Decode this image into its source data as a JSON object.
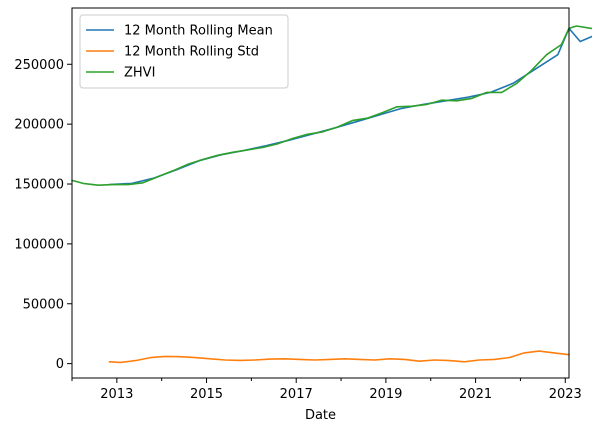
{
  "chart_data": {
    "type": "line",
    "title": "",
    "xlabel": "Date",
    "ylabel": "",
    "xlim": [
      "2012-01-01",
      "2023-02-01"
    ],
    "ylim": [
      -12000,
      297000
    ],
    "x_ticks": [
      "2013",
      "2015",
      "2017",
      "2019",
      "2021",
      "2023"
    ],
    "y_ticks": [
      0,
      50000,
      100000,
      150000,
      200000,
      250000
    ],
    "grid": false,
    "legend_position": "top-left",
    "series": [
      {
        "name": "12 Month Rolling Mean",
        "color": "#1f77b4",
        "points": [
          [
            "2012-11-01",
            149500
          ],
          [
            "2013-05-01",
            150500
          ],
          [
            "2013-11-01",
            155000
          ],
          [
            "2014-05-01",
            162000
          ],
          [
            "2014-11-01",
            169500
          ],
          [
            "2015-05-01",
            174500
          ],
          [
            "2015-11-01",
            178000
          ],
          [
            "2016-05-01",
            182000
          ],
          [
            "2016-11-01",
            186500
          ],
          [
            "2017-05-01",
            191500
          ],
          [
            "2017-11-01",
            196500
          ],
          [
            "2018-05-01",
            202000
          ],
          [
            "2018-11-01",
            207500
          ],
          [
            "2019-05-01",
            213000
          ],
          [
            "2019-11-01",
            216500
          ],
          [
            "2020-05-01",
            219500
          ],
          [
            "2020-11-01",
            222500
          ],
          [
            "2021-05-01",
            226500
          ],
          [
            "2021-11-01",
            234000
          ],
          [
            "2022-05-01",
            246000
          ],
          [
            "2022-11-01",
            258000
          ],
          [
            "2023-05-01",
            269000
          ],
          [
            "2023-11-01",
            277000
          ],
          [
            "2023-02-01",
            280000
          ]
        ]
      },
      {
        "name": "12 Month Rolling Std",
        "color": "#ff7f0e",
        "points": [
          [
            "2012-11-01",
            1500
          ],
          [
            "2013-02-01",
            1000
          ],
          [
            "2013-06-01",
            2500
          ],
          [
            "2013-10-01",
            5000
          ],
          [
            "2014-02-01",
            6000
          ],
          [
            "2014-06-01",
            5800
          ],
          [
            "2014-10-01",
            5000
          ],
          [
            "2015-02-01",
            4000
          ],
          [
            "2015-06-01",
            3000
          ],
          [
            "2015-10-01",
            2700
          ],
          [
            "2016-02-01",
            3000
          ],
          [
            "2016-06-01",
            3800
          ],
          [
            "2016-10-01",
            4000
          ],
          [
            "2017-02-01",
            3500
          ],
          [
            "2017-06-01",
            3000
          ],
          [
            "2017-10-01",
            3500
          ],
          [
            "2018-02-01",
            4000
          ],
          [
            "2018-06-01",
            3500
          ],
          [
            "2018-10-01",
            3000
          ],
          [
            "2019-02-01",
            4000
          ],
          [
            "2019-06-01",
            3500
          ],
          [
            "2019-10-01",
            2000
          ],
          [
            "2020-02-01",
            3000
          ],
          [
            "2020-06-01",
            2500
          ],
          [
            "2020-10-01",
            1500
          ],
          [
            "2021-02-01",
            3000
          ],
          [
            "2021-06-01",
            3500
          ],
          [
            "2021-10-01",
            5000
          ],
          [
            "2022-02-01",
            9000
          ],
          [
            "2022-06-01",
            10500
          ],
          [
            "2022-10-01",
            9000
          ],
          [
            "2023-02-01",
            7500
          ]
        ]
      },
      {
        "name": "ZHVI",
        "color": "#2ca02c",
        "points": [
          [
            "2012-01-01",
            153000
          ],
          [
            "2012-04-01",
            150500
          ],
          [
            "2012-08-01",
            149000
          ],
          [
            "2012-12-01",
            149500
          ],
          [
            "2013-04-01",
            149500
          ],
          [
            "2013-08-01",
            151000
          ],
          [
            "2013-12-01",
            156000
          ],
          [
            "2014-04-01",
            161000
          ],
          [
            "2014-08-01",
            166500
          ],
          [
            "2014-12-01",
            170500
          ],
          [
            "2015-04-01",
            174000
          ],
          [
            "2015-08-01",
            176500
          ],
          [
            "2015-12-01",
            178500
          ],
          [
            "2016-04-01",
            180500
          ],
          [
            "2016-08-01",
            183500
          ],
          [
            "2016-12-01",
            188000
          ],
          [
            "2017-04-01",
            191500
          ],
          [
            "2017-08-01",
            193500
          ],
          [
            "2017-12-01",
            197500
          ],
          [
            "2018-04-01",
            203000
          ],
          [
            "2018-08-01",
            205000
          ],
          [
            "2018-12-01",
            209500
          ],
          [
            "2019-04-01",
            214500
          ],
          [
            "2019-08-01",
            215000
          ],
          [
            "2019-12-01",
            216500
          ],
          [
            "2020-04-01",
            220000
          ],
          [
            "2020-08-01",
            219500
          ],
          [
            "2020-12-01",
            221500
          ],
          [
            "2021-04-01",
            226500
          ],
          [
            "2021-08-01",
            226500
          ],
          [
            "2021-12-01",
            234000
          ],
          [
            "2022-04-01",
            245000
          ],
          [
            "2022-08-01",
            258000
          ],
          [
            "2022-12-01",
            266500
          ],
          [
            "2023-04-01",
            282000
          ],
          [
            "2023-08-01",
            280000
          ],
          [
            "2023-02-01",
            280000
          ]
        ]
      }
    ]
  }
}
